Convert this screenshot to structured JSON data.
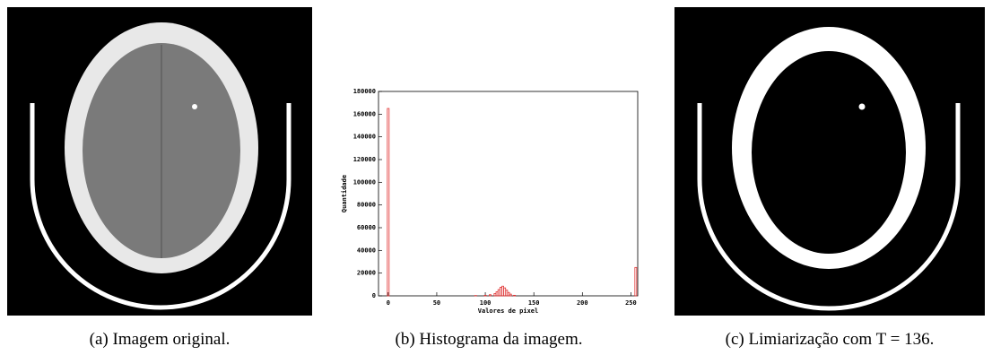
{
  "captions": [
    "(a) Imagem original.",
    "(b) Histograma da imagem.",
    "(c) Limiarização com T = 136."
  ],
  "chart_data": {
    "type": "bar",
    "x_label": "Valores de pixel",
    "y_label": "Quantidade",
    "x": [
      0,
      90,
      100,
      105,
      110,
      112,
      114,
      116,
      118,
      120,
      122,
      124,
      126,
      130,
      255
    ],
    "values": [
      165000,
      300,
      500,
      1000,
      2000,
      3500,
      5500,
      7500,
      8500,
      7000,
      5000,
      3000,
      1500,
      500,
      25000
    ],
    "color": "#e03030",
    "xlim": [
      -10,
      257
    ],
    "xticks": [
      0,
      50,
      100,
      150,
      200,
      250
    ],
    "ylim": [
      0,
      180000
    ],
    "yticks": [
      0,
      20000,
      40000,
      60000,
      80000,
      100000,
      120000,
      140000,
      160000,
      180000
    ]
  }
}
